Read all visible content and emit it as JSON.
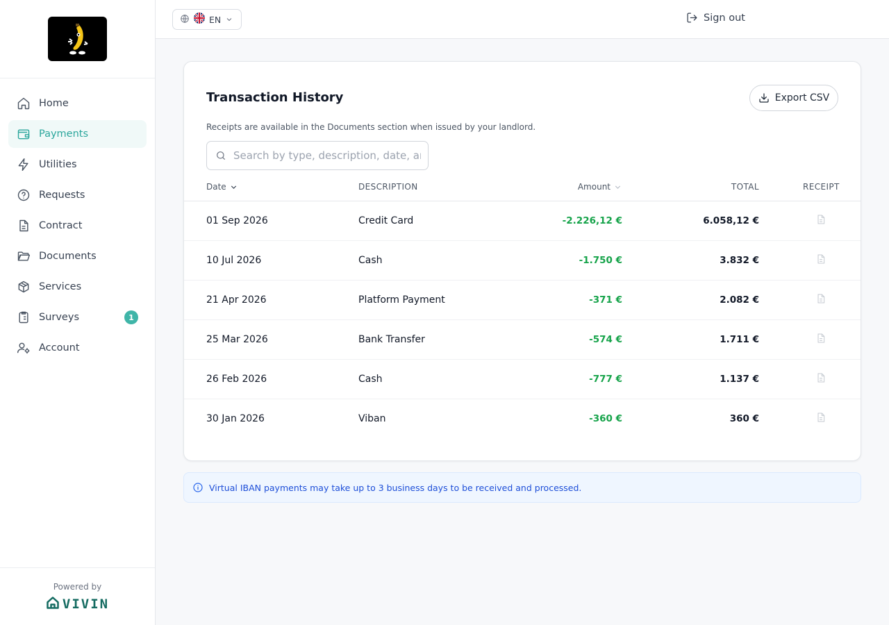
{
  "language": {
    "code": "EN"
  },
  "topbar": {
    "signout_label": "Sign out"
  },
  "sidebar": {
    "items": [
      {
        "label": "Home",
        "icon": "home-icon",
        "active": false
      },
      {
        "label": "Payments",
        "icon": "wallet-icon",
        "active": true
      },
      {
        "label": "Utilities",
        "icon": "bolt-icon",
        "active": false
      },
      {
        "label": "Requests",
        "icon": "question-icon",
        "active": false
      },
      {
        "label": "Contract",
        "icon": "document-icon",
        "active": false
      },
      {
        "label": "Documents",
        "icon": "folder-icon",
        "active": false
      },
      {
        "label": "Services",
        "icon": "box-icon",
        "active": false
      },
      {
        "label": "Surveys",
        "icon": "clipboard-icon",
        "active": false,
        "badge": "1"
      },
      {
        "label": "Account",
        "icon": "user-gear-icon",
        "active": false
      }
    ],
    "powered_by": "Powered by",
    "brand": "VIVIN"
  },
  "card": {
    "title": "Transaction History",
    "export_label": "Export CSV",
    "subtitle": "Receipts are available in the Documents section when issued by your landlord.",
    "search_placeholder": "Search by type, description, date, amount...",
    "columns": {
      "date": "Date",
      "description": "DESCRIPTION",
      "amount": "Amount",
      "total": "TOTAL",
      "receipt": "RECEIPT"
    },
    "rows": [
      {
        "date": "01 Sep 2026",
        "description": "Credit Card",
        "amount": "-2.226,12 €",
        "total": "6.058,12 €"
      },
      {
        "date": "10 Jul 2026",
        "description": "Cash",
        "amount": "-1.750 €",
        "total": "3.832 €"
      },
      {
        "date": "21 Apr 2026",
        "description": "Platform Payment",
        "amount": "-371 €",
        "total": "2.082 €"
      },
      {
        "date": "25 Mar 2026",
        "description": "Bank Transfer",
        "amount": "-574 €",
        "total": "1.711 €"
      },
      {
        "date": "26 Feb 2026",
        "description": "Cash",
        "amount": "-777 €",
        "total": "1.137 €"
      },
      {
        "date": "30 Jan 2026",
        "description": "Viban",
        "amount": "-360 €",
        "total": "360 €"
      }
    ]
  },
  "info_banner": "Virtual IBAN payments may take up to 3 business days to be received and processed.",
  "colors": {
    "accent": "#2ba69c",
    "positive": "#16a34a",
    "info": "#1d4ed8"
  }
}
